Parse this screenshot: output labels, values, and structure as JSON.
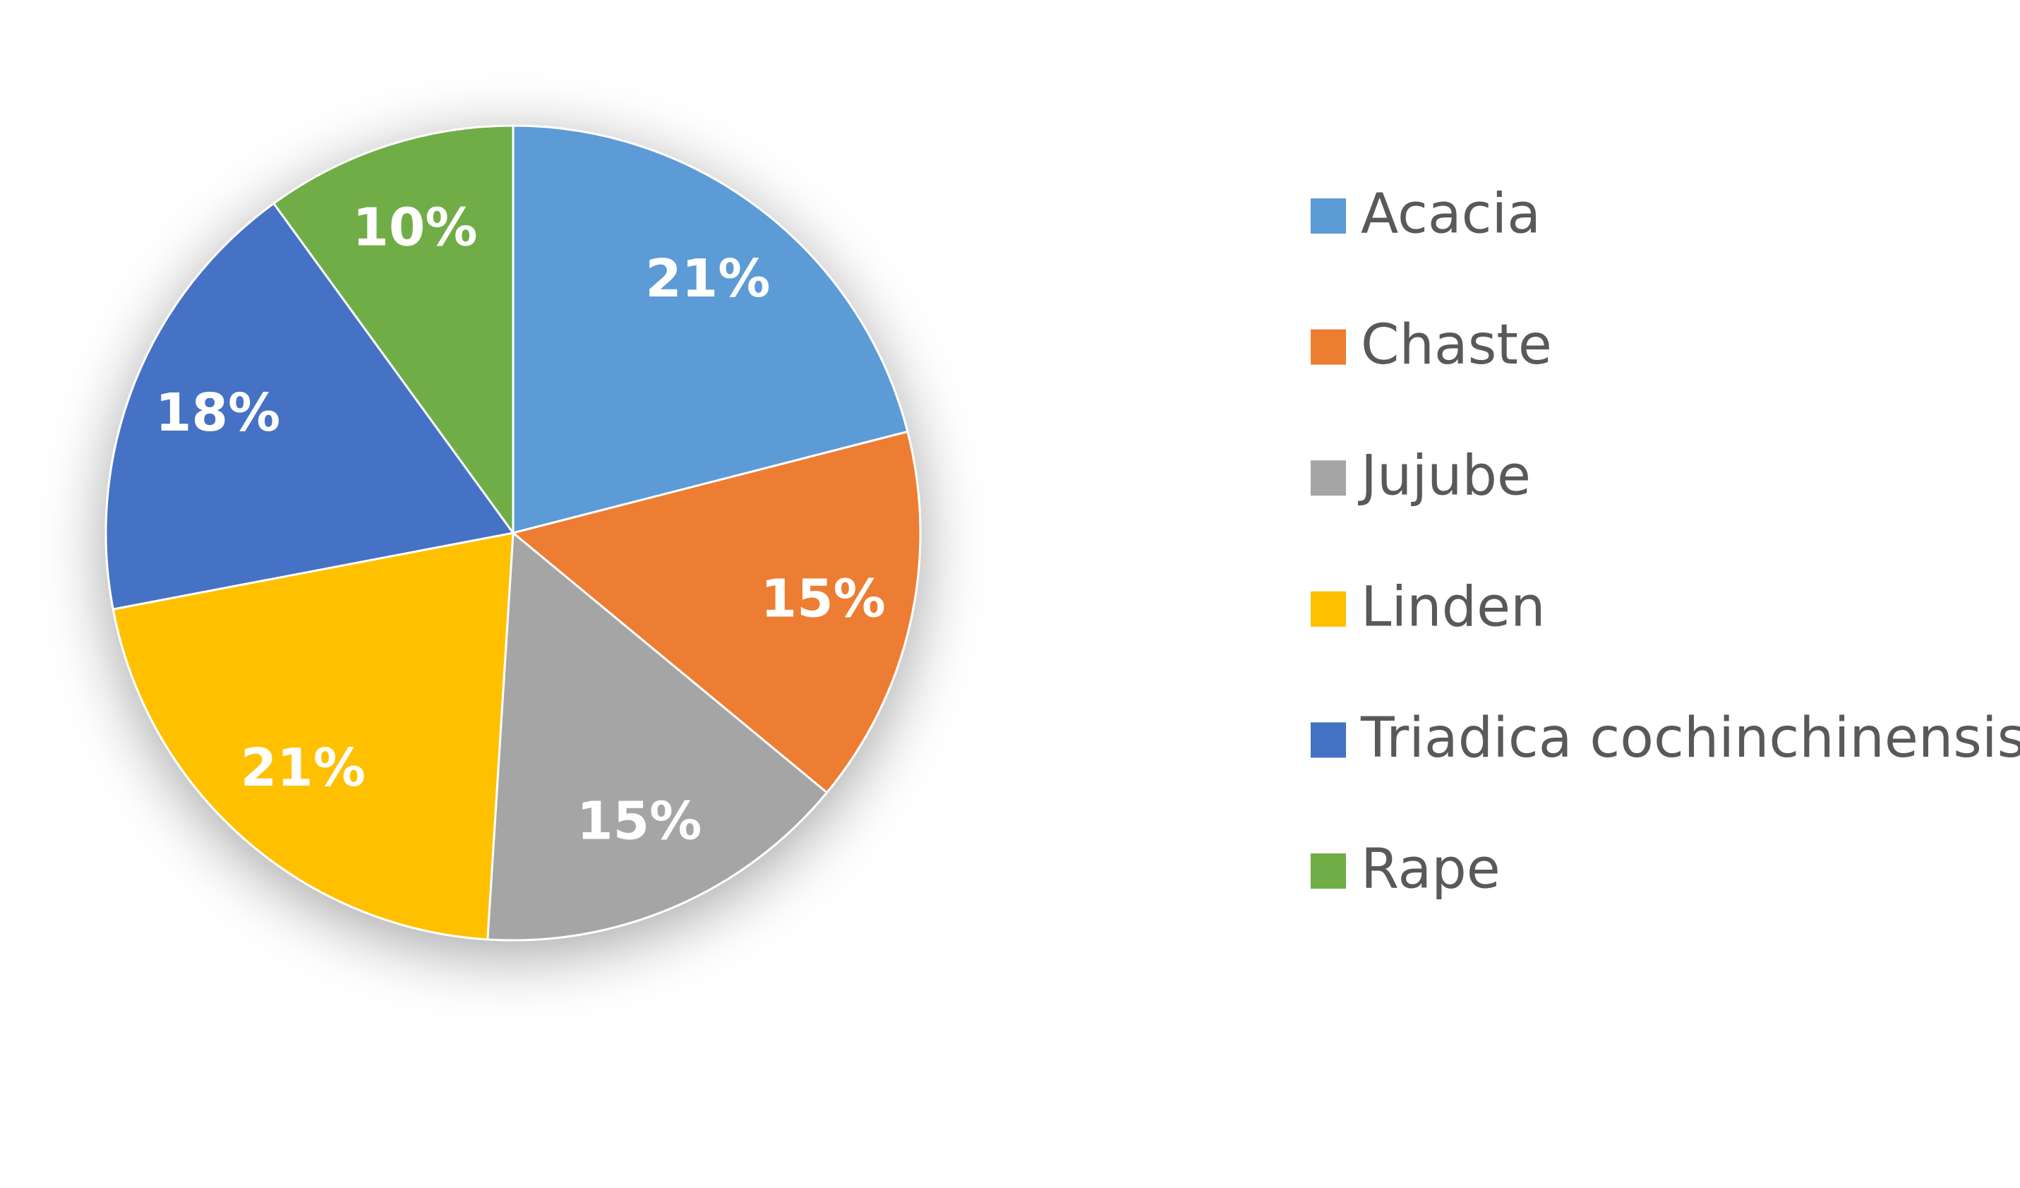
{
  "chart_data": {
    "type": "pie",
    "categories": [
      "Acacia",
      "Chaste",
      "Jujube",
      "Linden",
      "Triadica cochinchinensis",
      "Rape"
    ],
    "values": [
      21,
      15,
      15,
      21,
      18,
      10
    ],
    "value_labels": [
      "21%",
      "15%",
      "15%",
      "21%",
      "18%",
      "10%"
    ],
    "colors": [
      "#5b9bd5",
      "#ed7d31",
      "#a5a5a5",
      "#ffc000",
      "#4472c4",
      "#70ad47"
    ],
    "legend": "right"
  }
}
